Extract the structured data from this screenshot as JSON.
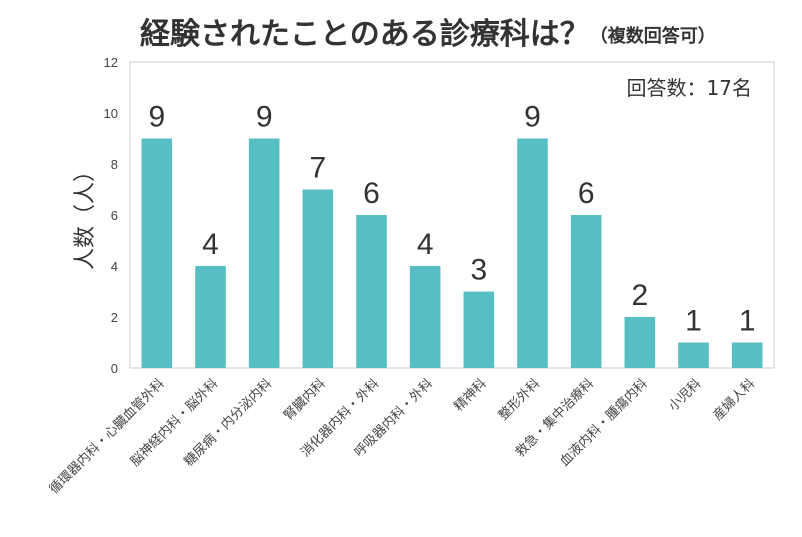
{
  "title": "経験されたことのある診療科は？",
  "subtitle": "（複数回答可）",
  "annotation": "回答数：17名",
  "chart_data": {
    "type": "bar",
    "title": "経験されたことのある診療科は？（複数回答可）",
    "xlabel": "",
    "ylabel": "人数（人）",
    "ylim": [
      0,
      12
    ],
    "yticks": [
      0,
      2,
      4,
      6,
      8,
      10,
      12
    ],
    "grid": false,
    "bar_color": "#57bfc4",
    "categories": [
      "循環器内科・心臓血管外科",
      "脳神経内科・脳外科",
      "糖尿病・内分泌内科",
      "腎臓内科",
      "消化器内科・外科",
      "呼吸器内科・外科",
      "精神科",
      "整形外科",
      "救急・集中治療科",
      "血液内科・腫瘍内科",
      "小児科",
      "産婦人科"
    ],
    "values": [
      9,
      4,
      9,
      7,
      6,
      4,
      3,
      9,
      6,
      2,
      1,
      1
    ]
  }
}
